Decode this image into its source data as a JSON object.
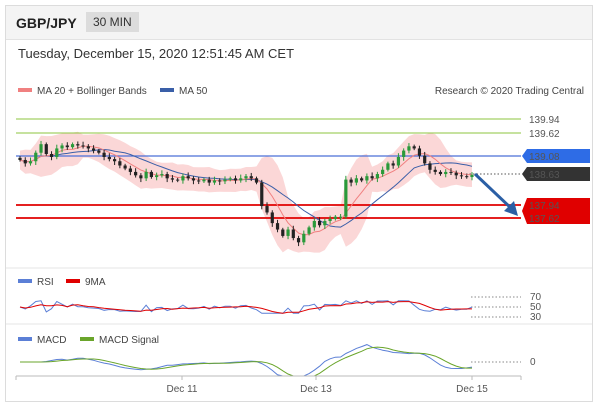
{
  "header": {
    "symbol": "GBP/JPY",
    "timeframe": "30 MIN"
  },
  "timestamp": "Tuesday, December 15, 2020 12:51:45 AM CET",
  "legend": {
    "ma20": "MA 20 + Bollinger Bands",
    "ma50": "MA 50",
    "rsi": "RSI",
    "rsi_ma": "9MA",
    "macd": "MACD",
    "macd_signal": "MACD Signal"
  },
  "credit": "Research © 2020 Trading Central",
  "colors": {
    "ma20": "#f08080",
    "ma50": "#3a5fa8",
    "bands": "#f9c9c9",
    "support": "#e00000",
    "resistance": "#4a6fd8",
    "target": "#8dc63f",
    "current": "#333333",
    "arrow": "#2b5fa5"
  },
  "chart_data": {
    "type": "candlestick",
    "x_ticks": [
      "Dec 11",
      "Dec 13",
      "Dec 15"
    ],
    "price_levels": [
      {
        "value": "139.94",
        "kind": "target"
      },
      {
        "value": "139.62",
        "kind": "target"
      },
      {
        "value": "139.08",
        "kind": "resistance"
      },
      {
        "value": "138.63",
        "kind": "current"
      },
      {
        "value": "137.94",
        "kind": "support"
      },
      {
        "value": "137.62",
        "kind": "support"
      }
    ],
    "price_series": [
      138.98,
      138.9,
      138.95,
      139.15,
      139.35,
      139.12,
      139.05,
      139.25,
      139.32,
      139.28,
      139.35,
      139.32,
      139.3,
      139.25,
      139.2,
      139.15,
      139.05,
      139.0,
      138.95,
      138.85,
      138.78,
      138.7,
      138.62,
      138.55,
      138.7,
      138.58,
      138.62,
      138.65,
      138.55,
      138.52,
      138.5,
      138.6,
      138.55,
      138.5,
      138.48,
      138.52,
      138.45,
      138.5,
      138.48,
      138.52,
      138.55,
      138.5,
      138.55,
      138.6,
      138.55,
      138.45,
      137.9,
      137.75,
      137.5,
      137.35,
      137.2,
      137.35,
      137.15,
      137.05,
      137.25,
      137.4,
      137.55,
      137.45,
      137.55,
      137.6,
      137.65,
      137.65,
      138.52,
      138.45,
      138.55,
      138.5,
      138.6,
      138.55,
      138.65,
      138.75,
      138.9,
      138.85,
      139.05,
      139.2,
      139.3,
      139.25,
      139.08,
      138.9,
      138.75,
      138.7,
      138.65,
      138.7,
      138.68,
      138.62,
      138.6,
      138.58,
      138.63
    ],
    "ylim": [
      137.0,
      140.2
    ],
    "rsi": {
      "ticks": [
        "70",
        "50",
        "30"
      ]
    },
    "macd": {
      "ticks": [
        "0"
      ]
    }
  }
}
